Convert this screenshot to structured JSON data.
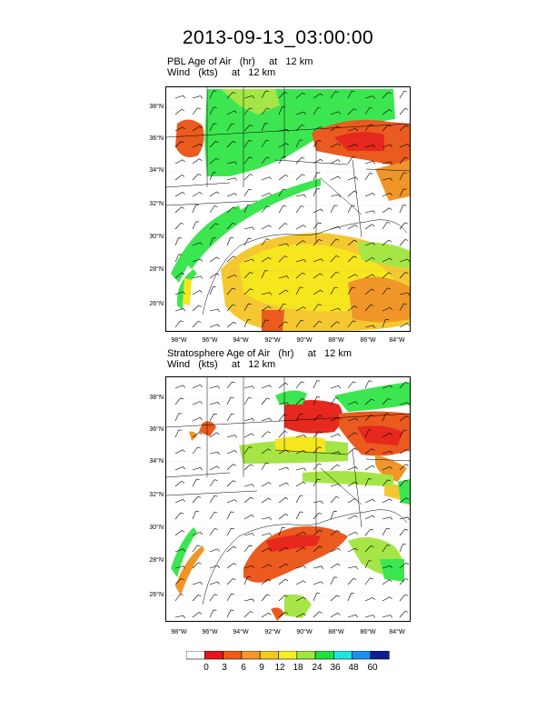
{
  "title": "2013-09-13_03:00:00",
  "panels": [
    {
      "title_line1": "PBL Age of Air   (hr)     at   12 km",
      "title_line2": "Wind   (kts)     at   12 km"
    },
    {
      "title_line1": "Stratosphere Age of Air   (hr)     at   12 km",
      "title_line2": "Wind   (kts)     at   12 km"
    }
  ],
  "lat_labels": [
    "38°N",
    "36°N",
    "34°N",
    "32°N",
    "30°N",
    "28°N",
    "26°N"
  ],
  "lon_labels": [
    "98°W",
    "96°W",
    "94°W",
    "92°W",
    "90°W",
    "88°W",
    "86°W",
    "84°W"
  ],
  "colorbar": {
    "labels": [
      "0",
      "3",
      "6",
      "9",
      "12",
      "18",
      "24",
      "36",
      "48",
      "60"
    ],
    "colors": [
      "#ffffff",
      "#e8141e",
      "#f05a14",
      "#f59628",
      "#f5c81e",
      "#f5f01e",
      "#a0e63c",
      "#1ee13c",
      "#1ee6e6",
      "#1e8cf0",
      "#0a1e96"
    ]
  },
  "colors": {
    "green": "#3ce650",
    "lightgreen": "#a5e646",
    "yellow": "#f5e61e",
    "gold": "#f5c832",
    "orange": "#f09628",
    "redorange": "#eb5a1e",
    "red": "#e6281e"
  }
}
